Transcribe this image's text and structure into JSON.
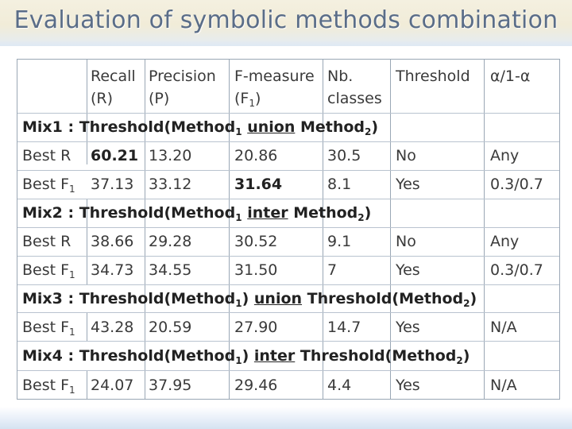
{
  "title": "Evaluation of symbolic methods combination",
  "headers": {
    "recall": [
      "Recall",
      "(R)"
    ],
    "precision": [
      "Precision",
      "(P)"
    ],
    "fmeasure": [
      "F-measure",
      "(F",
      "1",
      ")"
    ],
    "nb": [
      "Nb.",
      "classes"
    ],
    "threshold": "Threshold",
    "alpha": "α/1-α"
  },
  "groups": [
    {
      "label": {
        "pre": "Mix1 : Threshold(Method",
        "s1": "1",
        "op": "union",
        "mid": " Method",
        "s2": "2",
        "post": ")"
      },
      "rows": [
        {
          "best": "Best R",
          "best_sub": "",
          "r": "60.21",
          "p": "13.20",
          "f": "20.86",
          "nb": "30.5",
          "th": "No",
          "a": "Any"
        },
        {
          "best": "Best F",
          "best_sub": "1",
          "r": "37.13",
          "p": "33.12",
          "f": "31.64",
          "nb": "8.1",
          "th": "Yes",
          "a": "0.3/0.7"
        }
      ]
    },
    {
      "label": {
        "pre": "Mix2 : Threshold(Method",
        "s1": "1",
        "op": "inter",
        "mid": " Method",
        "s2": "2",
        "post": ")"
      },
      "rows": [
        {
          "best": "Best R",
          "best_sub": "",
          "r": "38.66",
          "p": "29.28",
          "f": "30.52",
          "nb": "9.1",
          "th": "No",
          "a": "Any"
        },
        {
          "best": "Best F",
          "best_sub": "1",
          "r": "34.73",
          "p": "34.55",
          "f": "31.50",
          "nb": "7",
          "th": "Yes",
          "a": "0.3/0.7"
        }
      ]
    },
    {
      "label": {
        "pre": "Mix3 : Threshold(Method",
        "s1": "1",
        "mid1": ") ",
        "op": "union",
        "mid": " Threshold(Method",
        "s2": "2",
        "post": ")"
      },
      "rows": [
        {
          "best": "Best F",
          "best_sub": "1",
          "r": "43.28",
          "p": "20.59",
          "f": "27.90",
          "nb": "14.7",
          "th": "Yes",
          "a": "N/A"
        }
      ]
    },
    {
      "label": {
        "pre": "Mix4 : Threshold(Method",
        "s1": "1",
        "mid1": ") ",
        "op": "inter",
        "mid": " Threshold(Method",
        "s2": "2",
        "post": ")"
      },
      "rows": [
        {
          "best": "Best F",
          "best_sub": "1",
          "r": "24.07",
          "p": "37.95",
          "f": "29.46",
          "nb": "4.4",
          "th": "Yes",
          "a": "N/A"
        }
      ]
    }
  ]
}
